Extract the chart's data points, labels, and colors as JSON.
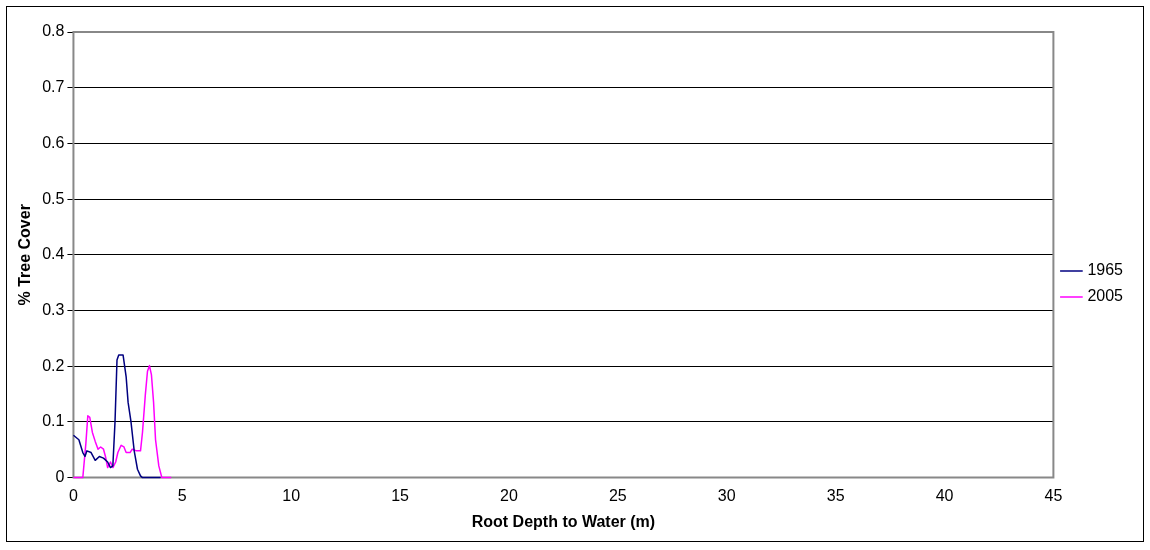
{
  "chart_data": {
    "type": "line",
    "xlabel": "Root Depth to Water (m)",
    "ylabel": "% Tree Cover",
    "xlim": [
      0,
      45
    ],
    "xticks": [
      0,
      5,
      10,
      15,
      20,
      25,
      30,
      35,
      40,
      45
    ],
    "ylim": [
      0,
      0.8
    ],
    "yticks": [
      0,
      0.1,
      0.2,
      0.3,
      0.4,
      0.5,
      0.6,
      0.7,
      0.8
    ],
    "grid": "y",
    "legend": "right",
    "marker": "none",
    "line_style": "solid",
    "series": [
      {
        "name": "1965",
        "color": "#000080",
        "x": [
          0,
          0.25,
          0.43,
          0.53,
          0.62,
          0.81,
          1.0,
          1.19,
          1.38,
          1.57,
          1.7,
          1.81,
          1.91,
          2.0,
          2.08,
          2.28,
          2.42,
          2.51,
          2.64,
          2.79,
          2.94,
          3.08,
          3.17,
          4.0
        ],
        "values": [
          0.076,
          0.068,
          0.045,
          0.038,
          0.048,
          0.045,
          0.031,
          0.038,
          0.035,
          0.028,
          0.018,
          0.021,
          0.101,
          0.211,
          0.22,
          0.22,
          0.181,
          0.135,
          0.101,
          0.048,
          0.015,
          0.003,
          0,
          0
        ]
      },
      {
        "name": "2005",
        "color": "#ff00ff",
        "x": [
          0,
          0.43,
          0.57,
          0.66,
          0.75,
          0.87,
          1.0,
          1.13,
          1.25,
          1.38,
          1.47,
          1.57,
          1.7,
          1.81,
          1.94,
          2.04,
          2.19,
          2.32,
          2.42,
          2.6,
          2.7,
          2.89,
          3.08,
          3.17,
          3.3,
          3.4,
          3.49,
          3.58,
          3.68,
          3.77,
          3.92,
          4.06,
          4.49
        ],
        "values": [
          0,
          0,
          0.061,
          0.111,
          0.108,
          0.081,
          0.065,
          0.051,
          0.055,
          0.051,
          0.038,
          0.018,
          0.028,
          0.018,
          0.028,
          0.045,
          0.058,
          0.055,
          0.045,
          0.045,
          0.051,
          0.048,
          0.048,
          0.081,
          0.148,
          0.191,
          0.201,
          0.185,
          0.135,
          0.068,
          0.021,
          0,
          0
        ]
      }
    ]
  }
}
